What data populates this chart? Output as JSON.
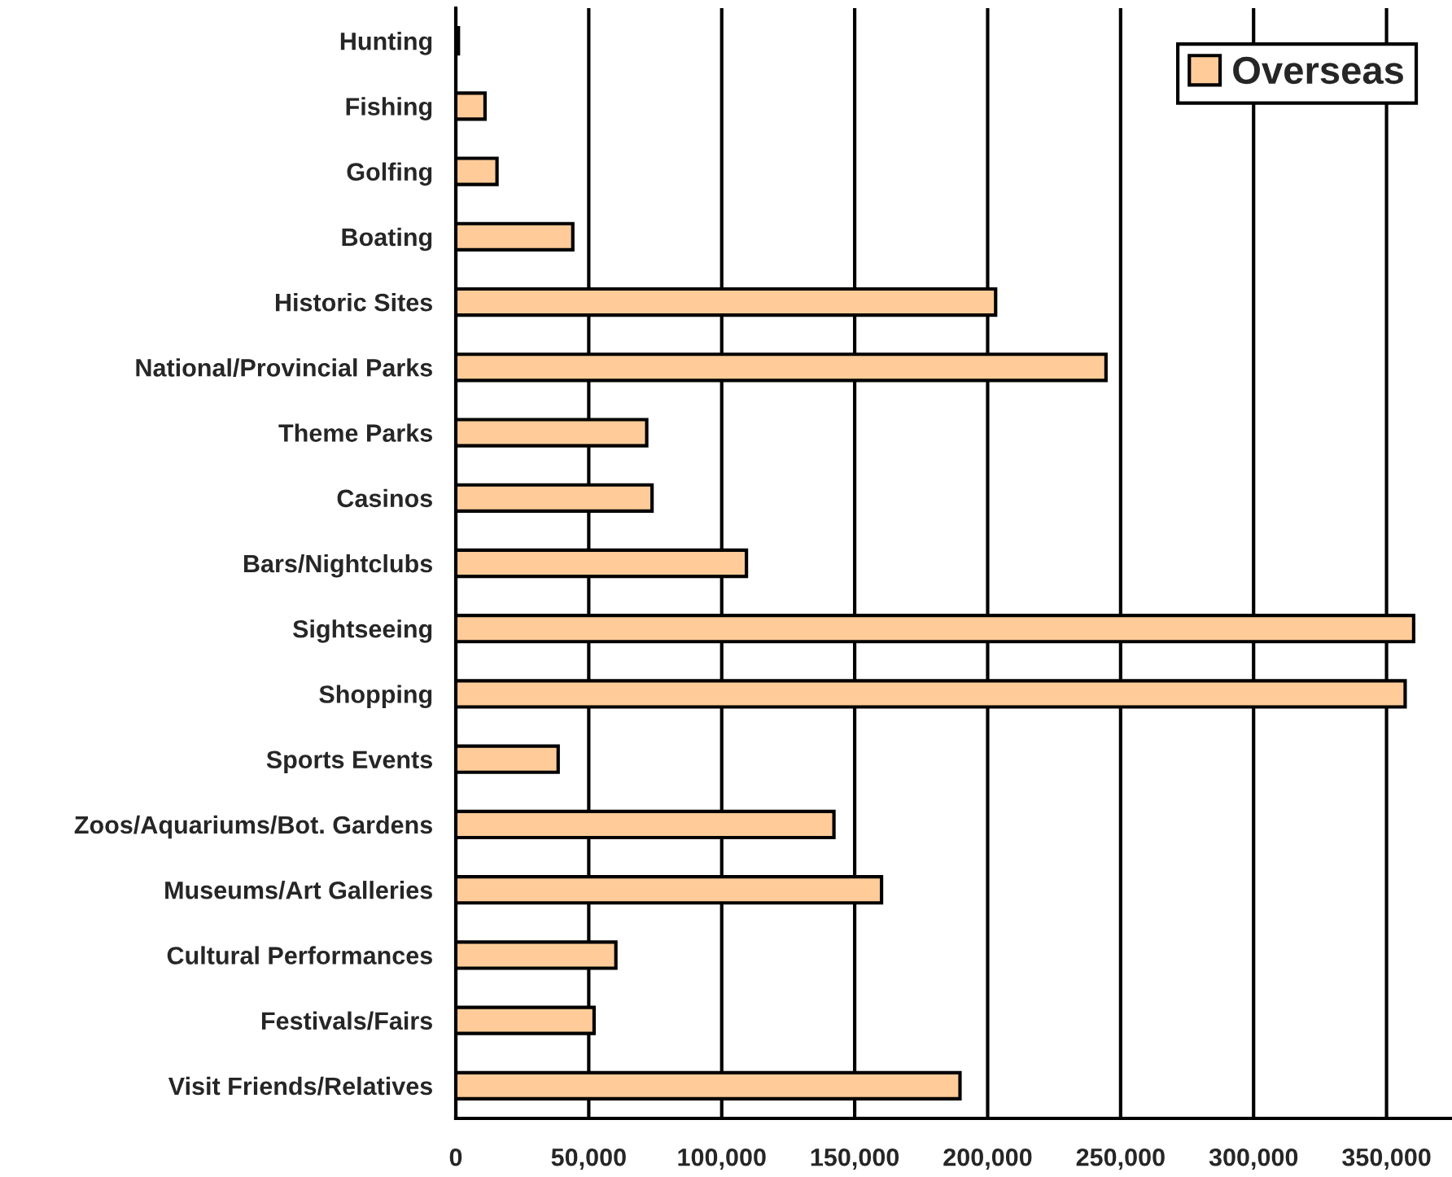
{
  "chart_data": {
    "type": "bar",
    "orientation": "horizontal",
    "categories": [
      "Hunting",
      "Fishing",
      "Golfing",
      "Boating",
      "Historic Sites",
      "National/Provincial Parks",
      "Theme Parks",
      "Casinos",
      "Bars/Nightclubs",
      "Sightseeing",
      "Shopping",
      "Sports Events",
      "Zoos/Aquariums/Bot. Gardens",
      "Museums/Art Galleries",
      "Cultural Performances",
      "Festivals/Fairs",
      "Visit Friends/Relatives"
    ],
    "series": [
      {
        "name": "Overseas",
        "color": "#ffcc99",
        "values": [
          1000,
          11000,
          15500,
          44000,
          203000,
          244500,
          71800,
          73800,
          109300,
          360200,
          357000,
          38500,
          142200,
          160100,
          60200,
          52000,
          189600
        ]
      }
    ],
    "xlim": [
      0,
      374000
    ],
    "xticks": [
      0,
      {
        "value": 50000,
        "label": "50,000"
      },
      {
        "value": 100000,
        "label": "100,000"
      },
      {
        "value": 150000,
        "label": "150,000"
      },
      {
        "value": 200000,
        "label": "200,000"
      },
      {
        "value": 250000,
        "label": "250,000"
      },
      {
        "value": 300000,
        "label": "300,000"
      },
      {
        "value": 350000,
        "label": "350,000"
      }
    ],
    "grid": "x",
    "legend": "top right"
  }
}
